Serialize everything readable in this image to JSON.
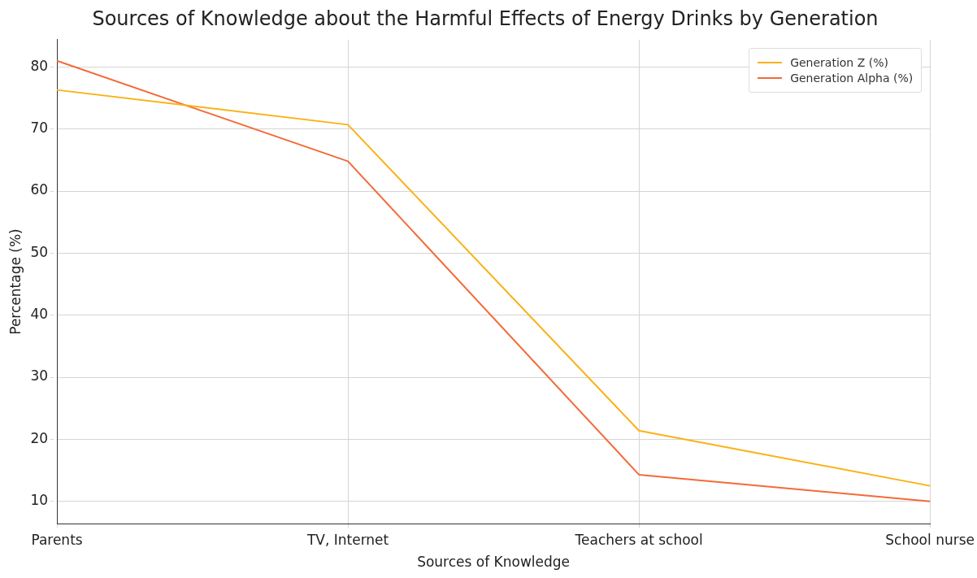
{
  "chart_data": {
    "type": "line",
    "title": "Sources of Knowledge about the Harmful Effects of Energy Drinks by Generation",
    "xlabel": "Sources of Knowledge",
    "ylabel": "Percentage (%)",
    "categories": [
      "Parents",
      "TV, Internet",
      "Teachers at school",
      "School nurse"
    ],
    "series": [
      {
        "name": "Generation Z (%)",
        "color": "#fbb117",
        "values": [
          76.3,
          70.7,
          21.4,
          12.5
        ]
      },
      {
        "name": "Generation Alpha (%)",
        "color": "#f26b38",
        "values": [
          81,
          64.8,
          14.3,
          10
        ]
      }
    ],
    "ylim": [
      6.4,
      84.4
    ],
    "yticks": [
      10,
      20,
      30,
      40,
      50,
      60,
      70,
      80
    ],
    "grid": true,
    "legend": "top right",
    "marker": "none",
    "line_style": "solid"
  }
}
